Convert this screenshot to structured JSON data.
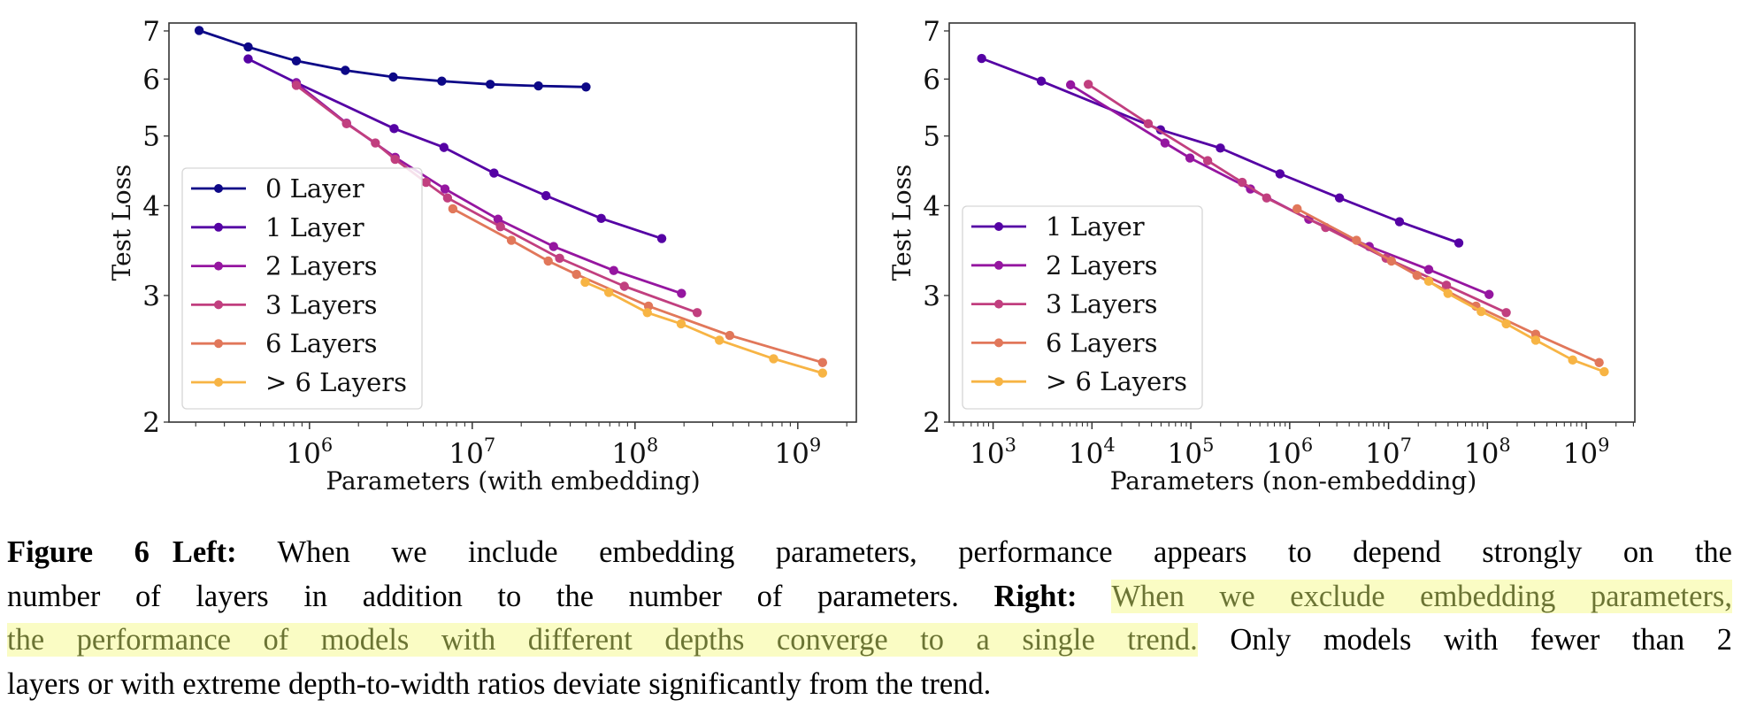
{
  "chart_data": [
    {
      "type": "line",
      "panel": "left",
      "xlabel": "Parameters (with embedding)",
      "ylabel": "Test Loss",
      "xscale": "log",
      "yscale": "log",
      "xlim": [
        137000.0,
        2290000000.0
      ],
      "ylim": [
        2.0,
        7.18
      ],
      "xticks": [
        1000000.0,
        10000000.0,
        100000000.0,
        1000000000.0
      ],
      "xtick_labels": [
        {
          "base": "10",
          "exp": "6"
        },
        {
          "base": "10",
          "exp": "7"
        },
        {
          "base": "10",
          "exp": "8"
        },
        {
          "base": "10",
          "exp": "9"
        }
      ],
      "yticks": [
        2,
        3,
        4,
        5,
        6,
        7
      ],
      "ytick_labels": [
        "2",
        "3",
        "4",
        "5",
        "6",
        "7"
      ],
      "grid": false,
      "legend_placement": "lower-left",
      "series": [
        {
          "name": "0 Layer",
          "color": "#0d0887",
          "points": [
            [
              210000.0,
              7.01
            ],
            [
              420000.0,
              6.65
            ],
            [
              830000.0,
              6.36
            ],
            [
              1660000.0,
              6.17
            ],
            [
              3270000.0,
              6.04
            ],
            [
              6500000.0,
              5.96
            ],
            [
              12900000.0,
              5.9
            ],
            [
              25500000.0,
              5.87
            ],
            [
              50000000.0,
              5.85
            ]
          ]
        },
        {
          "name": "1 Layer",
          "color": "#5502a4",
          "points": [
            [
              420000.0,
              6.4
            ],
            [
              830000.0,
              5.93
            ],
            [
              3310000.0,
              5.12
            ],
            [
              6700000.0,
              4.82
            ],
            [
              13600000.0,
              4.44
            ],
            [
              28400000.0,
              4.13
            ],
            [
              62000000.0,
              3.84
            ],
            [
              146000000.0,
              3.6
            ]
          ]
        },
        {
          "name": "2 Layers",
          "color": "#9516a0",
          "points": [
            [
              830000.0,
              5.92
            ],
            [
              1690000.0,
              5.21
            ],
            [
              3360000.0,
              4.67
            ],
            [
              6800000.0,
              4.22
            ],
            [
              14400000.0,
              3.83
            ],
            [
              31600000.0,
              3.51
            ],
            [
              74000000.0,
              3.25
            ],
            [
              193000000.0,
              3.02
            ]
          ]
        },
        {
          "name": "3 Layers",
          "color": "#c13f7f",
          "points": [
            [
              830000.0,
              5.88
            ],
            [
              1690000.0,
              5.2
            ],
            [
              2540000.0,
              4.89
            ],
            [
              3360000.0,
              4.64
            ],
            [
              5200000.0,
              4.31
            ],
            [
              7050000.0,
              4.1
            ],
            [
              14900000.0,
              3.74
            ],
            [
              34400000.0,
              3.38
            ],
            [
              86000000.0,
              3.09
            ],
            [
              241000000.0,
              2.84
            ]
          ]
        },
        {
          "name": "6 Layers",
          "color": "#e1775a",
          "points": [
            [
              7600000.0,
              3.96
            ],
            [
              17400000.0,
              3.58
            ],
            [
              29300000.0,
              3.35
            ],
            [
              43700000.0,
              3.21
            ],
            [
              121000000.0,
              2.9
            ],
            [
              382000000.0,
              2.64
            ],
            [
              1420000000.0,
              2.42
            ]
          ]
        },
        {
          "name": " > 6 Layers",
          "color": "#f7b444",
          "points": [
            [
              49400000.0,
              3.13
            ],
            [
              69000000.0,
              3.03
            ],
            [
              119000000.0,
              2.84
            ],
            [
              192000000.0,
              2.74
            ],
            [
              330000000.0,
              2.6
            ],
            [
              710000000.0,
              2.45
            ],
            [
              1420000000.0,
              2.34
            ]
          ]
        }
      ]
    },
    {
      "type": "line",
      "panel": "right",
      "xlabel": "Parameters (non-embedding)",
      "ylabel": "Test Loss",
      "xscale": "log",
      "yscale": "log",
      "xlim": [
        360.0,
        3100000000.0
      ],
      "ylim": [
        2.0,
        7.18
      ],
      "xticks": [
        1000.0,
        10000.0,
        100000.0,
        1000000.0,
        10000000.0,
        100000000.0,
        1000000000.0
      ],
      "xtick_labels": [
        {
          "base": "10",
          "exp": "3"
        },
        {
          "base": "10",
          "exp": "4"
        },
        {
          "base": "10",
          "exp": "5"
        },
        {
          "base": "10",
          "exp": "6"
        },
        {
          "base": "10",
          "exp": "7"
        },
        {
          "base": "10",
          "exp": "8"
        },
        {
          "base": "10",
          "exp": "9"
        }
      ],
      "yticks": [
        2,
        3,
        4,
        5,
        6,
        7
      ],
      "ytick_labels": [
        "2",
        "3",
        "4",
        "5",
        "6",
        "7"
      ],
      "grid": false,
      "legend_placement": "lower-left",
      "series": [
        {
          "name": "1 Layer",
          "color": "#5502a4",
          "points": [
            [
              766,
              6.41
            ],
            [
              3070,
              5.96
            ],
            [
              49400.0,
              5.1
            ],
            [
              199000.0,
              4.81
            ],
            [
              798000.0,
              4.43
            ],
            [
              3190000.0,
              4.1
            ],
            [
              12900000.0,
              3.8
            ],
            [
              51400000.0,
              3.55
            ]
          ]
        },
        {
          "name": "2 Layers",
          "color": "#9516a0",
          "points": [
            [
              6080,
              5.89
            ],
            [
              54800.0,
              4.89
            ],
            [
              98000.0,
              4.66
            ],
            [
              401000.0,
              4.22
            ],
            [
              1560000.0,
              3.83
            ],
            [
              6380000.0,
              3.51
            ],
            [
              25500000.0,
              3.26
            ],
            [
              104000000.0,
              3.01
            ]
          ]
        },
        {
          "name": "3 Layers",
          "color": "#c13f7f",
          "points": [
            [
              9180,
              5.9
            ],
            [
              37100.0,
              5.2
            ],
            [
              148000.0,
              4.62
            ],
            [
              331000.0,
              4.31
            ],
            [
              585000.0,
              4.1
            ],
            [
              2310000.0,
              3.73
            ],
            [
              9440000.0,
              3.38
            ],
            [
              38500000.0,
              3.1
            ],
            [
              155000000.0,
              2.84
            ]
          ]
        },
        {
          "name": "6 Layers",
          "color": "#e1775a",
          "points": [
            [
              1190000.0,
              3.96
            ],
            [
              4740000.0,
              3.58
            ],
            [
              10700000.0,
              3.35
            ],
            [
              19400000.0,
              3.2
            ],
            [
              76600000.0,
              2.9
            ],
            [
              308000000.0,
              2.65
            ],
            [
              1350000000.0,
              2.42
            ]
          ]
        },
        {
          "name": " > 6 Layers",
          "color": "#f7b444",
          "points": [
            [
              25500000.0,
              3.14
            ],
            [
              39900000.0,
              3.02
            ],
            [
              86500000.0,
              2.85
            ],
            [
              155000000.0,
              2.74
            ],
            [
              308000000.0,
              2.6
            ],
            [
              728000000.0,
              2.44
            ],
            [
              1520000000.0,
              2.35
            ]
          ]
        }
      ]
    }
  ],
  "caption": {
    "highlight_color": "#fafcc4",
    "lines": [
      [
        {
          "t": "Figure 6",
          "s": "b"
        },
        {
          "t": "",
          "s": "gap"
        },
        {
          "t": "Left:",
          "s": "b"
        },
        {
          "t": " When we include embedding parameters, performance appears to depend strongly on the",
          "s": ""
        }
      ],
      [
        {
          "t": "number of layers in addition to the number of parameters. ",
          "s": ""
        },
        {
          "t": "Right:",
          "s": "b"
        },
        {
          "t": " ",
          "s": ""
        },
        {
          "t": "When we exclude embedding parameters,",
          "s": "hl"
        }
      ],
      [
        {
          "t": "the performance of models with different depths converge to a single trend.",
          "s": "hl"
        },
        {
          "t": " Only models with fewer than 2",
          "s": ""
        }
      ],
      [
        {
          "t": "layers or with extreme depth-to-width ratios deviate significantly from the trend.",
          "s": ""
        }
      ]
    ]
  }
}
